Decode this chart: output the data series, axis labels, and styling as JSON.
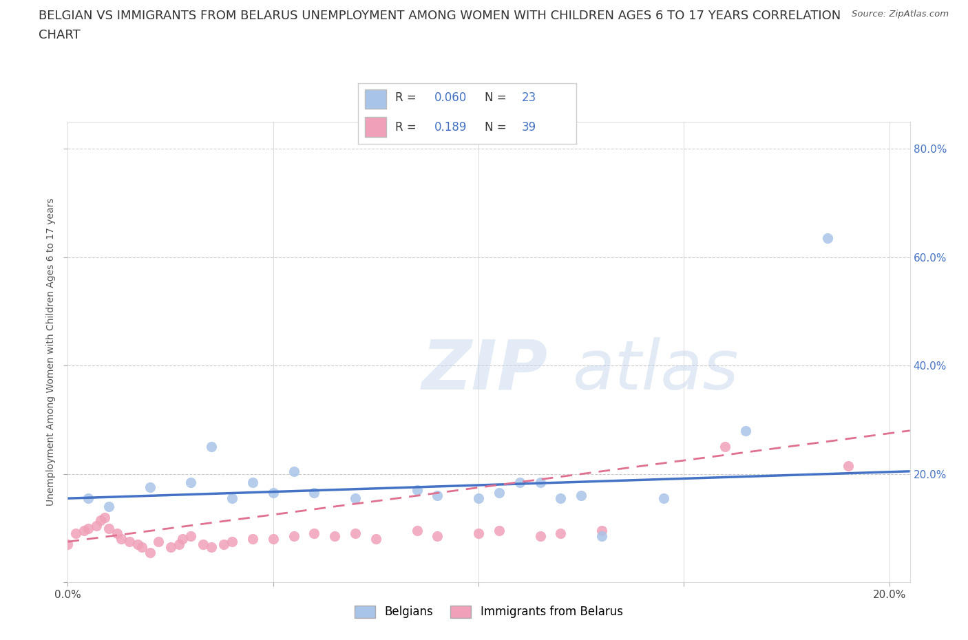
{
  "title_line1": "BELGIAN VS IMMIGRANTS FROM BELARUS UNEMPLOYMENT AMONG WOMEN WITH CHILDREN AGES 6 TO 17 YEARS CORRELATION",
  "title_line2": "CHART",
  "source_text": "Source: ZipAtlas.com",
  "ylabel": "Unemployment Among Women with Children Ages 6 to 17 years",
  "xlim": [
    0.0,
    0.205
  ],
  "ylim": [
    0.0,
    0.85
  ],
  "belgians_color": "#a8c4e8",
  "immigrants_color": "#f0a0b8",
  "trend_belgian_color": "#4472c4",
  "trend_immigrant_color": "#e07090",
  "R_belgian": 0.06,
  "N_belgian": 23,
  "R_immigrant": 0.189,
  "N_immigrant": 39,
  "legend_label_1": "Belgians",
  "legend_label_2": "Immigrants from Belarus",
  "watermark_zip": "ZIP",
  "watermark_atlas": "atlas",
  "background_color": "#ffffff",
  "grid_color": "#cccccc",
  "title_fontsize": 13,
  "axis_label_fontsize": 10,
  "tick_fontsize": 11,
  "belgians_x": [
    0.005,
    0.01,
    0.02,
    0.03,
    0.035,
    0.04,
    0.045,
    0.05,
    0.055,
    0.06,
    0.07,
    0.085,
    0.09,
    0.1,
    0.105,
    0.11,
    0.115,
    0.12,
    0.125,
    0.13,
    0.145,
    0.165,
    0.185
  ],
  "belgians_y": [
    0.155,
    0.14,
    0.175,
    0.185,
    0.25,
    0.155,
    0.185,
    0.165,
    0.205,
    0.165,
    0.155,
    0.17,
    0.16,
    0.155,
    0.165,
    0.185,
    0.185,
    0.155,
    0.16,
    0.085,
    0.155,
    0.28,
    0.635
  ],
  "immigrants_x": [
    0.0,
    0.002,
    0.004,
    0.005,
    0.007,
    0.008,
    0.009,
    0.01,
    0.012,
    0.013,
    0.015,
    0.017,
    0.018,
    0.02,
    0.022,
    0.025,
    0.027,
    0.028,
    0.03,
    0.033,
    0.035,
    0.038,
    0.04,
    0.045,
    0.05,
    0.055,
    0.06,
    0.065,
    0.07,
    0.075,
    0.085,
    0.09,
    0.1,
    0.105,
    0.115,
    0.12,
    0.13,
    0.16,
    0.19
  ],
  "immigrants_y": [
    0.07,
    0.09,
    0.095,
    0.1,
    0.105,
    0.115,
    0.12,
    0.1,
    0.09,
    0.08,
    0.075,
    0.07,
    0.065,
    0.055,
    0.075,
    0.065,
    0.07,
    0.08,
    0.085,
    0.07,
    0.065,
    0.07,
    0.075,
    0.08,
    0.08,
    0.085,
    0.09,
    0.085,
    0.09,
    0.08,
    0.095,
    0.085,
    0.09,
    0.095,
    0.085,
    0.09,
    0.095,
    0.25,
    0.215
  ],
  "trend_bel_x0": 0.0,
  "trend_bel_x1": 0.205,
  "trend_bel_y0": 0.155,
  "trend_bel_y1": 0.205,
  "trend_imm_x0": 0.0,
  "trend_imm_x1": 0.205,
  "trend_imm_y0": 0.075,
  "trend_imm_y1": 0.28
}
